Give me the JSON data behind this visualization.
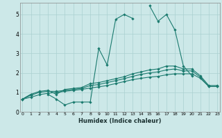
{
  "xlabel": "Humidex (Indice chaleur)",
  "x": [
    0,
    1,
    2,
    3,
    4,
    5,
    6,
    7,
    8,
    9,
    10,
    11,
    12,
    13,
    14,
    15,
    16,
    17,
    18,
    19,
    20,
    21,
    22,
    23
  ],
  "volatile_line": [
    0.65,
    0.9,
    null,
    0.9,
    0.65,
    0.35,
    0.5,
    0.5,
    0.5,
    3.25,
    2.4,
    4.75,
    5.0,
    4.8,
    null,
    5.45,
    4.65,
    5.0,
    4.2,
    2.35,
    1.85,
    null,
    null,
    null
  ],
  "line_top": [
    0.65,
    0.9,
    1.05,
    1.1,
    0.9,
    1.15,
    1.2,
    1.25,
    1.45,
    1.5,
    1.6,
    1.7,
    1.8,
    1.95,
    2.05,
    2.15,
    2.2,
    2.35,
    2.35,
    2.2,
    2.2,
    1.85,
    1.35,
    1.35
  ],
  "line_mid": [
    0.65,
    0.85,
    1.0,
    1.05,
    1.05,
    1.1,
    1.15,
    1.2,
    1.35,
    1.4,
    1.5,
    1.6,
    1.7,
    1.82,
    1.92,
    2.0,
    2.05,
    2.15,
    2.2,
    2.1,
    2.1,
    1.78,
    1.3,
    1.3
  ],
  "line_bot": [
    0.65,
    0.75,
    0.88,
    0.95,
    1.0,
    1.05,
    1.1,
    1.15,
    1.22,
    1.28,
    1.35,
    1.45,
    1.55,
    1.65,
    1.72,
    1.78,
    1.82,
    1.9,
    1.95,
    1.95,
    1.95,
    1.72,
    1.3,
    1.3
  ],
  "color": "#1a7a6e",
  "bg_color": "#cce8e8",
  "grid_color": "#aad0d0",
  "ylim": [
    0,
    5.6
  ],
  "xlim": [
    -0.3,
    23.3
  ],
  "yticks": [
    0,
    1,
    2,
    3,
    4,
    5
  ],
  "xticks": [
    0,
    1,
    2,
    3,
    4,
    5,
    6,
    7,
    8,
    9,
    10,
    11,
    12,
    13,
    14,
    15,
    16,
    17,
    18,
    19,
    20,
    21,
    22,
    23
  ]
}
